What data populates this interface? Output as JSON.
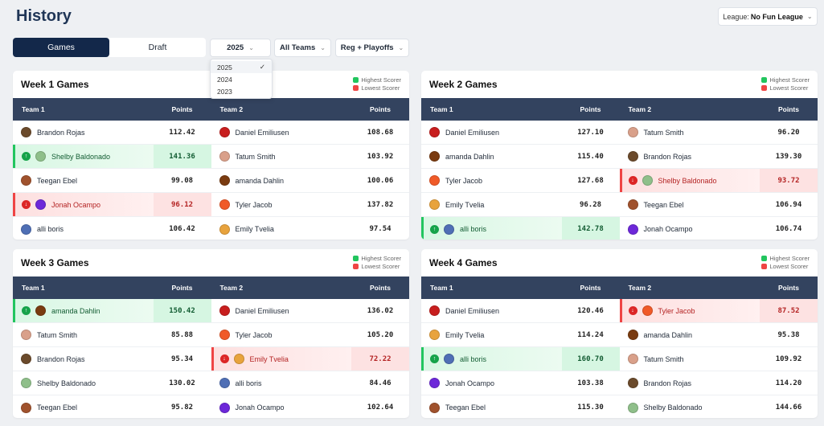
{
  "page_title": "History",
  "league": {
    "label": "League:",
    "value": "No Fun League"
  },
  "tabs": [
    {
      "label": "Games",
      "active": true
    },
    {
      "label": "Draft",
      "active": false
    }
  ],
  "filters": {
    "season": "2025",
    "teams": "All Teams",
    "type": "Reg + Playoffs",
    "season_options": [
      "2025",
      "2024",
      "2023"
    ]
  },
  "legend": {
    "highest": "Highest Scorer",
    "lowest": "Lowest Scorer",
    "highest_color": "#22c55e",
    "lowest_color": "#ef4444"
  },
  "columns": {
    "team1": "Team 1",
    "points": "Points",
    "team2": "Team 2"
  },
  "avatar_colors": {
    "Brandon Rojas": "#6b4a2b",
    "Shelby Baldonado": "#8fbf8a",
    "Teegan Ebel": "#a0522d",
    "Jonah Ocampo": "#6d28d9",
    "alli boris": "#4f6fb5",
    "Daniel Emiliusen": "#c81e1e",
    "Tatum Smith": "#d9a08a",
    "amanda Dahlin": "#7a3b10",
    "Tyler Jacob": "#f05a28",
    "Emily Tvelia": "#e8a33d"
  },
  "weeks": [
    {
      "title": "Week 1 Games",
      "rows": [
        {
          "t1": "Brandon Rojas",
          "p1": "112.42",
          "t2": "Daniel Emiliusen",
          "p2": "108.68"
        },
        {
          "t1": "Shelby Baldonado",
          "p1": "141.36",
          "s1": "hi",
          "t2": "Tatum Smith",
          "p2": "103.92"
        },
        {
          "t1": "Teegan Ebel",
          "p1": "99.08",
          "t2": "amanda Dahlin",
          "p2": "100.06"
        },
        {
          "t1": "Jonah Ocampo",
          "p1": "96.12",
          "s1": "lo",
          "t2": "Tyler Jacob",
          "p2": "137.82"
        },
        {
          "t1": "alli boris",
          "p1": "106.42",
          "t2": "Emily Tvelia",
          "p2": "97.54"
        }
      ]
    },
    {
      "title": "Week 2 Games",
      "rows": [
        {
          "t1": "Daniel Emiliusen",
          "p1": "127.10",
          "t2": "Tatum Smith",
          "p2": "96.20"
        },
        {
          "t1": "amanda Dahlin",
          "p1": "115.40",
          "t2": "Brandon Rojas",
          "p2": "139.30"
        },
        {
          "t1": "Tyler Jacob",
          "p1": "127.68",
          "t2": "Shelby Baldonado",
          "p2": "93.72",
          "s2": "lo"
        },
        {
          "t1": "Emily Tvelia",
          "p1": "96.28",
          "t2": "Teegan Ebel",
          "p2": "106.94"
        },
        {
          "t1": "alli boris",
          "p1": "142.78",
          "s1": "hi",
          "t2": "Jonah Ocampo",
          "p2": "106.74"
        }
      ]
    },
    {
      "title": "Week 3 Games",
      "rows": [
        {
          "t1": "amanda Dahlin",
          "p1": "150.42",
          "s1": "hi",
          "t2": "Daniel Emiliusen",
          "p2": "136.02"
        },
        {
          "t1": "Tatum Smith",
          "p1": "85.88",
          "t2": "Tyler Jacob",
          "p2": "105.20"
        },
        {
          "t1": "Brandon Rojas",
          "p1": "95.34",
          "t2": "Emily Tvelia",
          "p2": "72.22",
          "s2": "lo"
        },
        {
          "t1": "Shelby Baldonado",
          "p1": "130.02",
          "t2": "alli boris",
          "p2": "84.46"
        },
        {
          "t1": "Teegan Ebel",
          "p1": "95.82",
          "t2": "Jonah Ocampo",
          "p2": "102.64"
        }
      ]
    },
    {
      "title": "Week 4 Games",
      "rows": [
        {
          "t1": "Daniel Emiliusen",
          "p1": "120.46",
          "t2": "Tyler Jacob",
          "p2": "87.52",
          "s2": "lo"
        },
        {
          "t1": "Emily Tvelia",
          "p1": "114.24",
          "t2": "amanda Dahlin",
          "p2": "95.38"
        },
        {
          "t1": "alli boris",
          "p1": "160.70",
          "s1": "hi",
          "t2": "Tatum Smith",
          "p2": "109.92"
        },
        {
          "t1": "Jonah Ocampo",
          "p1": "103.38",
          "t2": "Brandon Rojas",
          "p2": "114.20"
        },
        {
          "t1": "Teegan Ebel",
          "p1": "115.30",
          "t2": "Shelby Baldonado",
          "p2": "144.66"
        }
      ]
    }
  ]
}
